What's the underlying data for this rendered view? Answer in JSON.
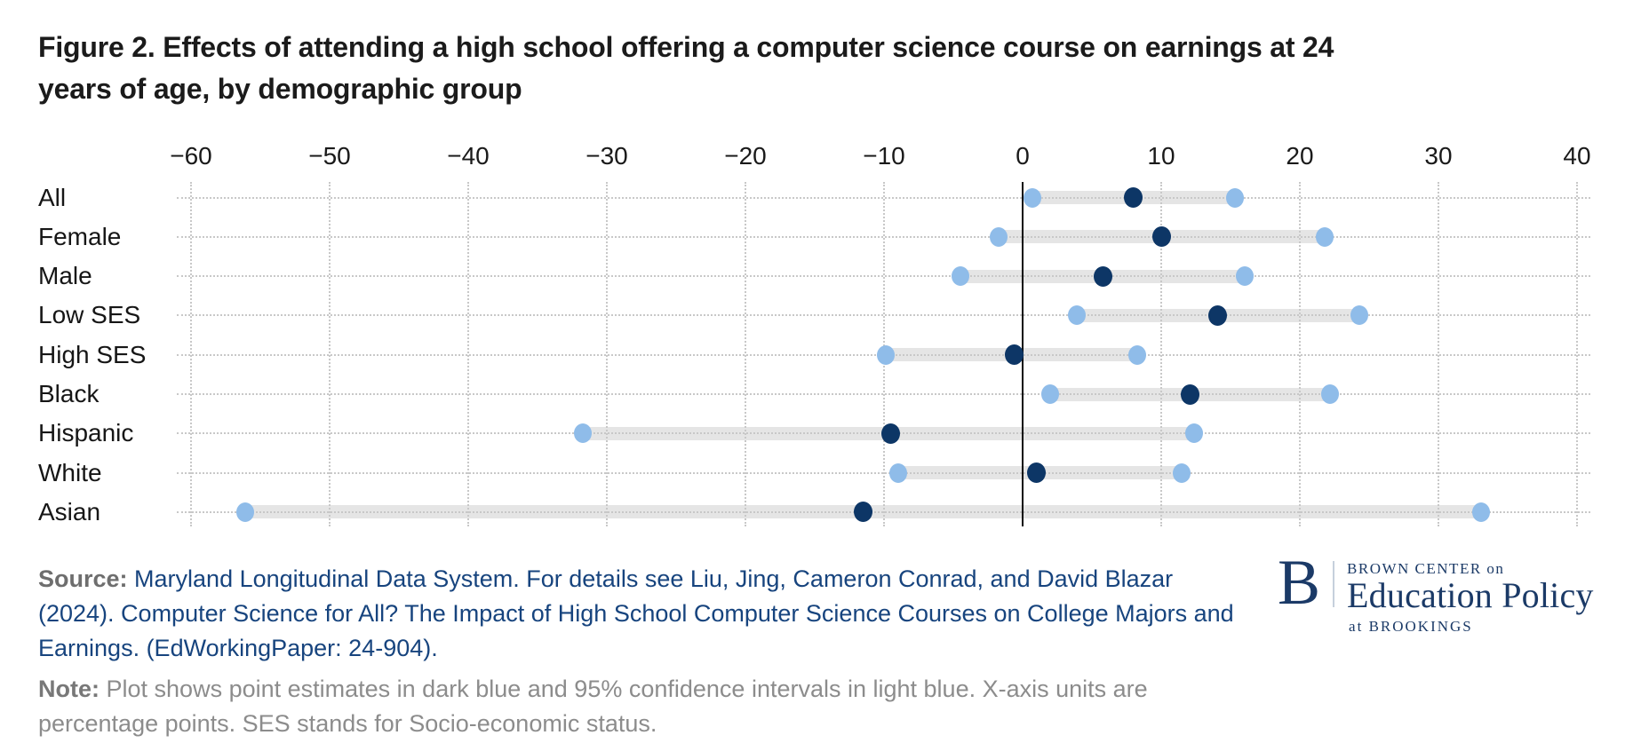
{
  "title": "Figure 2. Effects of attending a high school offering a computer science course on earnings at 24 years of age, by demographic group",
  "chart_data": {
    "type": "scatter",
    "subtype": "dot-plot-with-confidence-intervals",
    "title": "Figure 2. Effects of attending a high school offering a computer science course on earnings at 24 years of age, by demographic group",
    "xlabel": "percentage points",
    "ylabel": "demographic group",
    "xlim": [
      -60,
      40
    ],
    "x_ticks": [
      -60,
      -50,
      -40,
      -30,
      -20,
      -10,
      0,
      10,
      20,
      30,
      40
    ],
    "x_tick_labels": [
      "−60",
      "−50",
      "−40",
      "−30",
      "−20",
      "−10",
      "0",
      "10",
      "20",
      "30",
      "40"
    ],
    "grid": "dotted",
    "zero_line": true,
    "legend_position": "none",
    "categories": [
      "All",
      "Female",
      "Male",
      "Low SES",
      "High SES",
      "Black",
      "Hispanic",
      "White",
      "Asian"
    ],
    "series": [
      {
        "name": "Point estimate",
        "values": [
          8.0,
          10.0,
          5.8,
          14.1,
          -0.6,
          12.1,
          -9.5,
          1.0,
          -11.5
        ]
      },
      {
        "name": "95% CI lower bound",
        "values": [
          0.7,
          -1.7,
          -4.5,
          3.9,
          -9.9,
          2.0,
          -31.7,
          -9.0,
          -56.1
        ]
      },
      {
        "name": "95% CI upper bound",
        "values": [
          15.3,
          21.8,
          16.0,
          24.3,
          8.3,
          22.2,
          12.4,
          11.5,
          33.1
        ]
      }
    ],
    "colors": {
      "point_estimate": "#0d3666",
      "confidence_interval_dot": "#8fbce9",
      "interval_band": "#e5e5e5",
      "gridline": "#c8c8c8",
      "zero_line": "#0a0a0a"
    }
  },
  "source": {
    "label": "Source:",
    "text": "Maryland Longitudinal Data System. For details see Liu, Jing, Cameron Conrad, and David Blazar (2024). Computer Science for All? The Impact of High School Computer Science Courses on College Majors and Earnings. (EdWorkingPaper: 24-904)."
  },
  "note": {
    "label": "Note:",
    "text": "Plot shows point estimates in dark blue and 95% confidence intervals in light blue. X-axis units are percentage points. SES stands for Socio-economic status."
  },
  "logo": {
    "b": "B",
    "line1_caps": "BROWN CENTER",
    "line1_small": "on",
    "line2": "Education Policy",
    "line3_small": "at",
    "line3_caps": "BROOKINGS"
  }
}
